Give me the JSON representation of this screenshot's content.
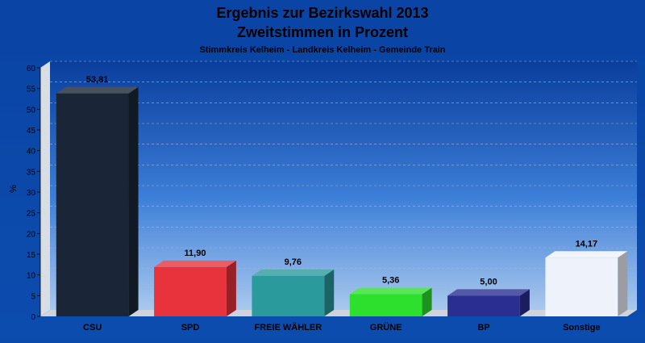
{
  "chart_data": {
    "type": "bar",
    "title": "Ergebnis zur Bezirkswahl 2013",
    "title2": "Zweitstimmen in Prozent",
    "subtitle": "Stimmkreis Kelheim - Landkreis Kelheim - Gemeinde Train",
    "ylabel": "%",
    "ylim": [
      0,
      60
    ],
    "yticks": [
      0,
      5,
      10,
      15,
      20,
      25,
      30,
      35,
      40,
      45,
      50,
      55,
      60
    ],
    "grid": true,
    "categories": [
      "CSU",
      "SPD",
      "FREIE WÄHLER",
      "GRÜNE",
      "BP",
      "Sonstige"
    ],
    "values": [
      53.81,
      11.9,
      9.76,
      5.36,
      5.0,
      14.17
    ],
    "value_labels": [
      "53,81",
      "11,90",
      "9,76",
      "5,36",
      "5,00",
      "14,17"
    ],
    "colors": [
      "#1a2638",
      "#e8323c",
      "#2a9a9c",
      "#2ee02e",
      "#2a2e90",
      "#eef2fa"
    ],
    "background_color": "#0a4aa8"
  }
}
